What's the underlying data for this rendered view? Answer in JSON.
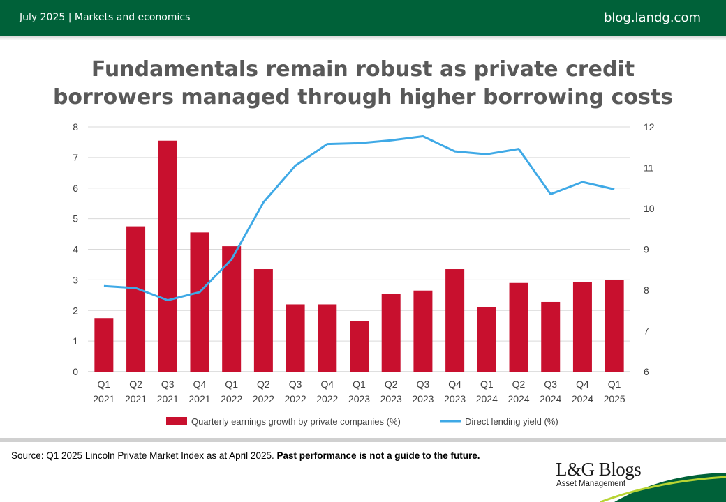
{
  "header": {
    "left_text": "July 2025 | Markets and economics",
    "right_text": "blog.landg.com"
  },
  "chart_title": "Fundamentals remain robust as private credit borrowers managed through higher borrowing costs",
  "chart_data": {
    "type": "bar+line",
    "title": "Fundamentals remain robust as private credit borrowers managed through higher borrowing costs",
    "categories": [
      [
        "Q1",
        "2021"
      ],
      [
        "Q2",
        "2021"
      ],
      [
        "Q3",
        "2021"
      ],
      [
        "Q4",
        "2021"
      ],
      [
        "Q1",
        "2022"
      ],
      [
        "Q2",
        "2022"
      ],
      [
        "Q3",
        "2022"
      ],
      [
        "Q4",
        "2022"
      ],
      [
        "Q1",
        "2023"
      ],
      [
        "Q2",
        "2023"
      ],
      [
        "Q3",
        "2023"
      ],
      [
        "Q4",
        "2023"
      ],
      [
        "Q1",
        "2024"
      ],
      [
        "Q2",
        "2024"
      ],
      [
        "Q3",
        "2024"
      ],
      [
        "Q4",
        "2024"
      ],
      [
        "Q1",
        "2025"
      ]
    ],
    "series": [
      {
        "name": "Quarterly earnings growth by private companies (%)",
        "type": "bar",
        "axis": "left",
        "color": "#C8102E",
        "values": [
          1.75,
          4.75,
          7.55,
          4.55,
          4.1,
          3.35,
          2.2,
          2.2,
          1.65,
          2.55,
          2.65,
          3.35,
          2.1,
          2.9,
          2.28,
          2.92,
          3.0
        ]
      },
      {
        "name": "Direct lending yield (%)",
        "type": "line",
        "axis": "right",
        "color": "#3FA9E6",
        "values": [
          8.1,
          8.05,
          7.75,
          7.95,
          8.75,
          10.15,
          11.05,
          11.58,
          11.6,
          11.67,
          11.77,
          11.4,
          11.33,
          11.46,
          10.35,
          10.65,
          10.47
        ]
      }
    ],
    "y_left": {
      "min": 0,
      "max": 8,
      "ticks": [
        0,
        1,
        2,
        3,
        4,
        5,
        6,
        7,
        8
      ]
    },
    "y_right": {
      "min": 6,
      "max": 12,
      "ticks": [
        6,
        7,
        8,
        9,
        10,
        11,
        12
      ]
    },
    "grid": true,
    "legend_position": "bottom"
  },
  "footer": {
    "source_text": "Source: Q1 2025 Lincoln Private Market Index as at April 2025. ",
    "disclaimer": "Past performance is not a guide to the future."
  },
  "logo": {
    "main": "L&G Blogs",
    "sub": "Asset Management"
  },
  "colors": {
    "header_green": "#006139",
    "bar_red": "#C8102E",
    "line_blue": "#3FA9E6",
    "title_grey": "#595959"
  }
}
